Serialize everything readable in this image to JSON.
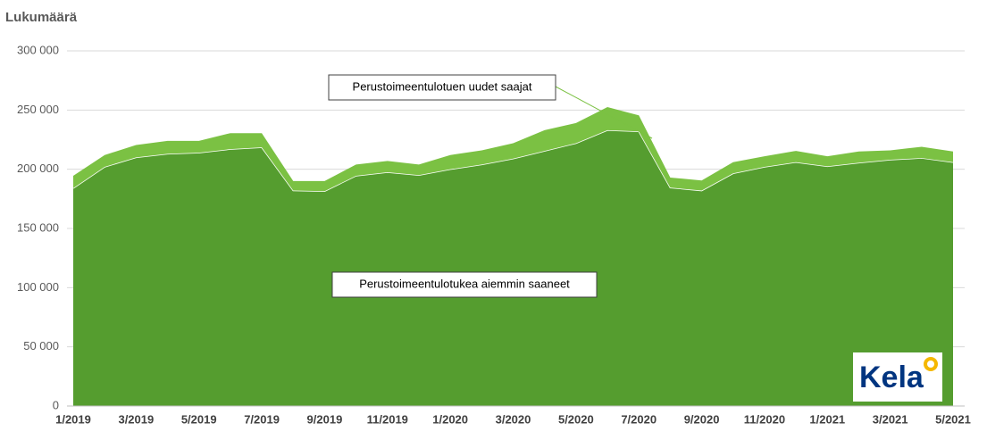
{
  "chart_data": {
    "type": "stacked_area",
    "y_axis_label": "Lukumäärä",
    "categories": [
      "1/2019",
      null,
      "3/2019",
      null,
      "5/2019",
      null,
      "7/2019",
      null,
      "9/2019",
      null,
      "11/2019",
      null,
      "1/2020",
      null,
      "3/2020",
      null,
      "5/2020",
      null,
      "7/2020",
      null,
      "9/2020",
      null,
      "11/2020",
      null,
      "1/2021",
      null,
      "3/2021",
      null,
      "5/2021"
    ],
    "series": [
      {
        "name": "Perustoimeentulotukea aiemmin saaneet",
        "color": "#559d2f",
        "values": [
          184000,
          202000,
          210000,
          213000,
          214000,
          217000,
          218500,
          182000,
          181500,
          194500,
          197500,
          195000,
          200000,
          204000,
          209000,
          215500,
          222000,
          233000,
          232000,
          184500,
          182000,
          196500,
          202000,
          206000,
          202500,
          205500,
          208000,
          209500,
          206000
        ]
      },
      {
        "name": "Perustoimeentulotuen uudet saajat",
        "color": "#7bc143",
        "values": [
          10500,
          10000,
          10500,
          11000,
          10000,
          13500,
          12000,
          8000,
          8500,
          9500,
          9500,
          9000,
          12000,
          12000,
          13000,
          17500,
          17000,
          19500,
          13500,
          8500,
          8500,
          9500,
          9000,
          9500,
          8500,
          9500,
          8000,
          9500,
          9000
        ]
      }
    ],
    "ylim": [
      0,
      300000
    ],
    "yticks": [
      0,
      {
        "value": 50000,
        "label": "50 000"
      },
      {
        "value": 100000,
        "label": "100 000"
      },
      {
        "value": 150000,
        "label": "150 000"
      },
      {
        "value": 200000,
        "label": "200 000"
      },
      {
        "value": 250000,
        "label": "250 000"
      },
      {
        "value": 300000,
        "label": "300 000"
      }
    ],
    "grid": true,
    "logo": "Kela"
  }
}
